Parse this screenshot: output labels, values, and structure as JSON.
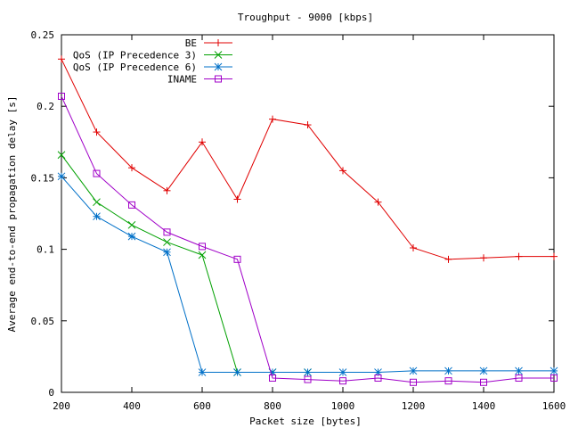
{
  "chart_data": {
    "type": "line",
    "title": "Troughput - 9000 [kbps]",
    "xlabel": "Packet size [bytes]",
    "ylabel": "Average end-to-end propagation delay [s]",
    "xlim": [
      200,
      1600
    ],
    "ylim": [
      0,
      0.25
    ],
    "x_ticks": [
      200,
      400,
      600,
      800,
      1000,
      1200,
      1400,
      1600
    ],
    "y_ticks": [
      0,
      0.05,
      0.1,
      0.15,
      0.2,
      0.25
    ],
    "x_tick_labels": [
      "200",
      "400",
      "600",
      "800",
      "1000",
      "1200",
      "1400",
      "1600"
    ],
    "y_tick_labels": [
      "0",
      "0.05",
      "0.1",
      "0.15",
      "0.2",
      "0.25"
    ],
    "grid": false,
    "legend_position": "top-left",
    "series": [
      {
        "name": "BE",
        "color": "#e00000",
        "marker": "plus",
        "x": [
          200,
          300,
          400,
          500,
          600,
          700,
          800,
          900,
          1000,
          1100,
          1200,
          1300,
          1400,
          1500,
          1600
        ],
        "values": [
          0.233,
          0.182,
          0.157,
          0.141,
          0.175,
          0.135,
          0.191,
          0.187,
          0.155,
          0.133,
          0.101,
          0.093,
          0.094,
          0.095,
          0.095
        ]
      },
      {
        "name": "QoS (IP Precedence 3)",
        "color": "#00a000",
        "marker": "cross",
        "x": [
          200,
          300,
          400,
          500,
          600,
          700,
          800,
          900
        ],
        "values": [
          0.166,
          0.133,
          0.117,
          0.105,
          0.096,
          0.014,
          0.014,
          0.014
        ]
      },
      {
        "name": "QoS (IP Precedence 6)",
        "color": "#0070c8",
        "marker": "star",
        "x": [
          200,
          300,
          400,
          500,
          600,
          700,
          800,
          900,
          1000,
          1100,
          1200,
          1300,
          1400,
          1500,
          1600
        ],
        "values": [
          0.151,
          0.123,
          0.109,
          0.098,
          0.014,
          0.014,
          0.014,
          0.014,
          0.014,
          0.014,
          0.015,
          0.015,
          0.015,
          0.015,
          0.015
        ]
      },
      {
        "name": "INAME",
        "color": "#a000c8",
        "marker": "square",
        "x": [
          200,
          300,
          400,
          500,
          600,
          700,
          800,
          900,
          1000,
          1100,
          1200,
          1300,
          1400,
          1500,
          1600
        ],
        "values": [
          0.207,
          0.153,
          0.131,
          0.112,
          0.102,
          0.093,
          0.01,
          0.009,
          0.008,
          0.01,
          0.007,
          0.008,
          0.007,
          0.01,
          0.01
        ]
      }
    ]
  }
}
